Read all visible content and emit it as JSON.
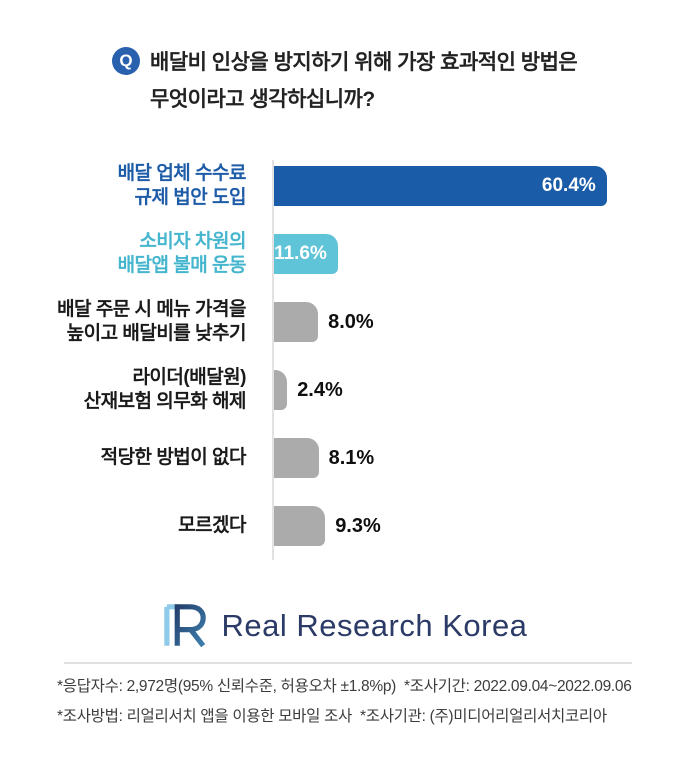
{
  "question": {
    "badge": "Q",
    "line1": "배달비 인상을 방지하기 위해 가장 효과적인 방법은",
    "line2": "무엇이라고 생각하십니까?"
  },
  "chart_data": {
    "type": "bar",
    "orientation": "horizontal",
    "title": "배달비 인상을 방지하기 위해 가장 효과적인 방법은 무엇이라고 생각하십니까?",
    "categories": [
      [
        "배달 업체 수수료",
        "규제 법안 도입"
      ],
      [
        "소비자 차원의",
        "배달앱 불매 운동"
      ],
      [
        "배달 주문 시 메뉴 가격을",
        "높이고 배달비를 낮추기"
      ],
      [
        "라이더(배달원)",
        "산재보험 의무화 해제"
      ],
      [
        "적당한 방법이 없다"
      ],
      [
        "모르겠다"
      ]
    ],
    "values": [
      60.4,
      11.6,
      8.0,
      2.4,
      8.1,
      9.3
    ],
    "value_labels": [
      "60.4%",
      "11.6%",
      "8.0%",
      "2.4%",
      "8.1%",
      "9.3%"
    ],
    "unit": "%",
    "xlim": [
      0,
      66
    ],
    "grid": false,
    "legend": false,
    "bar_colors": [
      "#1B5CA8",
      "#5FC4D8",
      "#ABABAB",
      "#ABABAB",
      "#ABABAB",
      "#ABABAB"
    ],
    "label_colors": [
      "#1E5CA8",
      "#45B6CE",
      "#1A1A1A",
      "#1A1A1A",
      "#1A1A1A",
      "#1A1A1A"
    ],
    "value_inside_bar": [
      true,
      true,
      false,
      false,
      false,
      false
    ],
    "axis_color": "#E2E2E2"
  },
  "logo": {
    "icon": "real-research-korea-R-monogram",
    "text": "Real Research Korea",
    "text_color": "#2B3A66",
    "icon_colors": [
      "#8FCAE8",
      "#24406E",
      "#3E7FAD"
    ]
  },
  "footer": {
    "line1": "*응답자수: 2,972명(95% 신뢰수준, 허용오차 ±1.8%p)  *조사기간: 2022.09.04~2022.09.06",
    "line2": "*조사방법: 리얼리서치 앱을 이용한 모바일 조사  *조사기관: (주)미디어리얼리서치코리아"
  },
  "colors": {
    "background": "#FFFFFF",
    "question_badge": "#2A61AE",
    "title_text": "#222222",
    "divider": "#E0E0E0",
    "footer_text": "#3D3D3D"
  }
}
